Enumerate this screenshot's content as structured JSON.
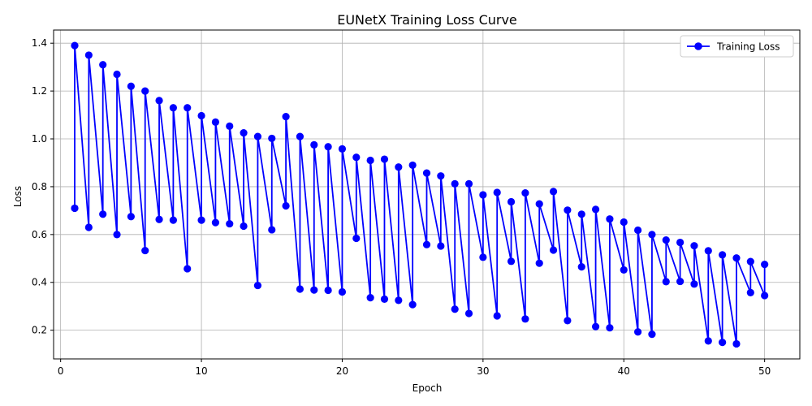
{
  "chart_data": {
    "type": "line",
    "title": "EUNetX Training Loss Curve",
    "xlabel": "Epoch",
    "ylabel": "Loss",
    "xlim": [
      -0.5,
      52.5
    ],
    "ylim": [
      0.08,
      1.455
    ],
    "xticks": [
      0,
      10,
      20,
      30,
      40,
      50
    ],
    "yticks": [
      0.2,
      0.4,
      0.6,
      0.8,
      1.0,
      1.2,
      1.4
    ],
    "ytick_labels": [
      "0.2",
      "0.4",
      "0.6",
      "0.8",
      "1.0",
      "1.2",
      "1.4"
    ],
    "grid": true,
    "legend_position": "upper-right",
    "color": "#0000ff",
    "series": [
      {
        "name": "Training Loss",
        "x": [
          1,
          1,
          2,
          2,
          3,
          3,
          4,
          4,
          5,
          5,
          6,
          6,
          7,
          7,
          8,
          8,
          9,
          9,
          10,
          10,
          11,
          11,
          12,
          12,
          13,
          13,
          14,
          14,
          15,
          15,
          16,
          16,
          17,
          17,
          18,
          18,
          19,
          19,
          20,
          20,
          21,
          21,
          22,
          22,
          23,
          23,
          24,
          24,
          25,
          25,
          26,
          26,
          27,
          27,
          28,
          28,
          29,
          29,
          30,
          30,
          31,
          31,
          32,
          32,
          33,
          33,
          34,
          34,
          35,
          35,
          36,
          36,
          37,
          37,
          38,
          38,
          39,
          39,
          40,
          40,
          41,
          41,
          42,
          42,
          43,
          43,
          44,
          44,
          45,
          45,
          46,
          46,
          47,
          47,
          48,
          48,
          49,
          49,
          50,
          50
        ],
        "y": [
          0.71,
          1.39,
          0.63,
          1.35,
          0.685,
          1.31,
          0.6,
          1.27,
          0.675,
          1.22,
          0.533,
          1.2,
          0.663,
          1.16,
          0.66,
          1.13,
          0.457,
          1.13,
          0.66,
          1.097,
          0.65,
          1.07,
          0.645,
          1.053,
          0.635,
          1.025,
          0.387,
          1.01,
          0.62,
          1.002,
          0.72,
          1.093,
          0.372,
          1.01,
          0.368,
          0.975,
          0.367,
          0.967,
          0.36,
          0.958,
          0.584,
          0.923,
          0.336,
          0.91,
          0.33,
          0.915,
          0.325,
          0.882,
          0.307,
          0.89,
          0.558,
          0.857,
          0.552,
          0.845,
          0.288,
          0.812,
          0.27,
          0.812,
          0.505,
          0.766,
          0.26,
          0.776,
          0.488,
          0.737,
          0.247,
          0.774,
          0.48,
          0.728,
          0.535,
          0.78,
          0.24,
          0.702,
          0.465,
          0.685,
          0.215,
          0.705,
          0.21,
          0.665,
          0.452,
          0.652,
          0.193,
          0.618,
          0.183,
          0.6,
          0.403,
          0.577,
          0.404,
          0.567,
          0.393,
          0.553,
          0.155,
          0.532,
          0.149,
          0.515,
          0.143,
          0.502,
          0.357,
          0.487,
          0.345,
          0.475
        ]
      }
    ]
  }
}
